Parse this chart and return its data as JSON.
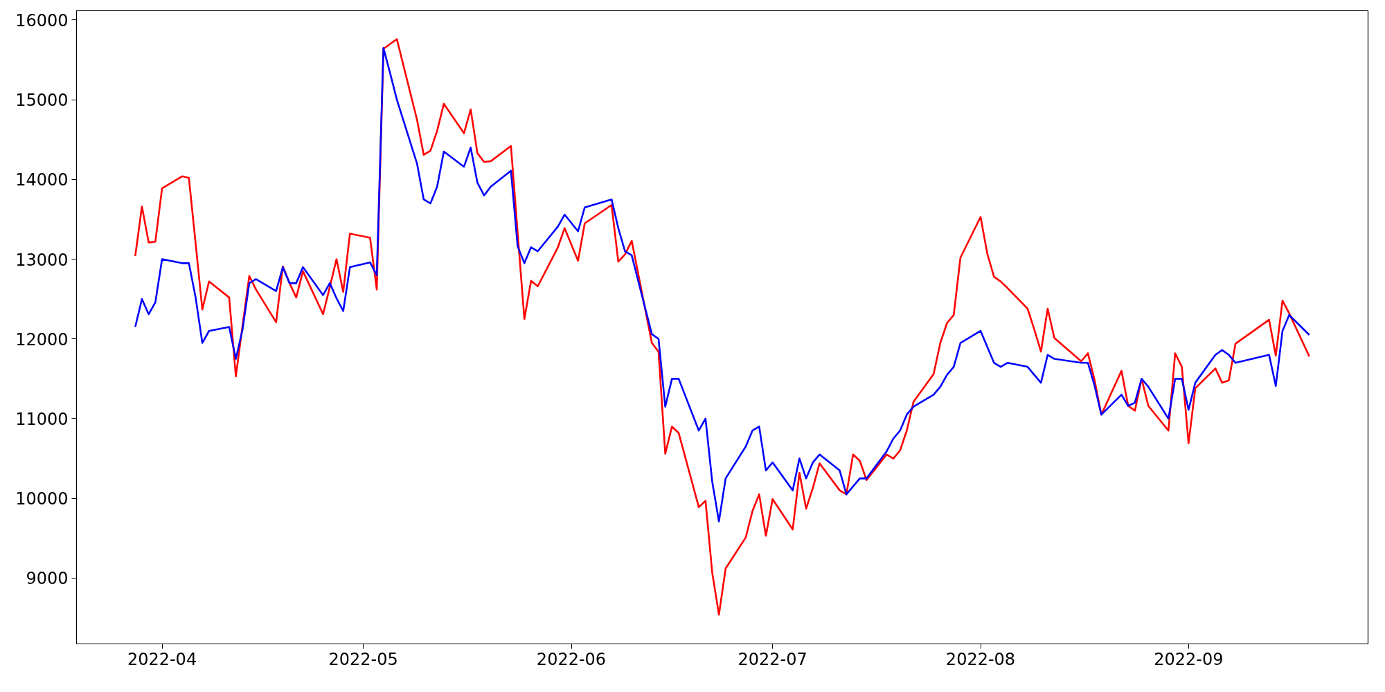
{
  "chart_data": {
    "type": "line",
    "line_style": "solid",
    "grid": false,
    "xlim": [
      "2022-03-19T06:00",
      "2022-09-27T18:00"
    ],
    "xticks": [
      "2022-04",
      "2022-05",
      "2022-06",
      "2022-07",
      "2022-08",
      "2022-09"
    ],
    "ylim": [
      8174,
      16117
    ],
    "yticks": [
      9000,
      10000,
      11000,
      12000,
      13000,
      14000,
      15000,
      16000
    ],
    "x": [
      "2022-03-28",
      "2022-03-29",
      "2022-03-30",
      "2022-03-31",
      "2022-04-01",
      "2022-04-04",
      "2022-04-05",
      "2022-04-06",
      "2022-04-07",
      "2022-04-08",
      "2022-04-11",
      "2022-04-12",
      "2022-04-13",
      "2022-04-14",
      "2022-04-15",
      "2022-04-18",
      "2022-04-19",
      "2022-04-20",
      "2022-04-21",
      "2022-04-22",
      "2022-04-25",
      "2022-04-26",
      "2022-04-27",
      "2022-04-28",
      "2022-04-29",
      "2022-05-02",
      "2022-05-03",
      "2022-05-04",
      "2022-05-05",
      "2022-05-06",
      "2022-05-09",
      "2022-05-10",
      "2022-05-11",
      "2022-05-12",
      "2022-05-13",
      "2022-05-16",
      "2022-05-17",
      "2022-05-18",
      "2022-05-19",
      "2022-05-20",
      "2022-05-23",
      "2022-05-24",
      "2022-05-25",
      "2022-05-26",
      "2022-05-27",
      "2022-05-30",
      "2022-05-31",
      "2022-06-02",
      "2022-06-03",
      "2022-06-07",
      "2022-06-08",
      "2022-06-09",
      "2022-06-10",
      "2022-06-13",
      "2022-06-14",
      "2022-06-15",
      "2022-06-16",
      "2022-06-17",
      "2022-06-20",
      "2022-06-21",
      "2022-06-22",
      "2022-06-23",
      "2022-06-24",
      "2022-06-27",
      "2022-06-28",
      "2022-06-29",
      "2022-06-30",
      "2022-07-01",
      "2022-07-04",
      "2022-07-05",
      "2022-07-06",
      "2022-07-07",
      "2022-07-08",
      "2022-07-11",
      "2022-07-12",
      "2022-07-13",
      "2022-07-14",
      "2022-07-15",
      "2022-07-18",
      "2022-07-19",
      "2022-07-20",
      "2022-07-21",
      "2022-07-22",
      "2022-07-25",
      "2022-07-26",
      "2022-07-27",
      "2022-07-28",
      "2022-07-29",
      "2022-08-01",
      "2022-08-02",
      "2022-08-03",
      "2022-08-04",
      "2022-08-05",
      "2022-08-08",
      "2022-08-09",
      "2022-08-10",
      "2022-08-11",
      "2022-08-12",
      "2022-08-16",
      "2022-08-17",
      "2022-08-18",
      "2022-08-19",
      "2022-08-22",
      "2022-08-23",
      "2022-08-24",
      "2022-08-25",
      "2022-08-26",
      "2022-08-29",
      "2022-08-30",
      "2022-08-31",
      "2022-09-01",
      "2022-09-02",
      "2022-09-05",
      "2022-09-06",
      "2022-09-07",
      "2022-09-08",
      "2022-09-13",
      "2022-09-14",
      "2022-09-15",
      "2022-09-16",
      "2022-09-19"
    ],
    "series": [
      {
        "color": "#ff0000",
        "values": [
          13040,
          13660,
          13210,
          13220,
          13890,
          14040,
          14020,
          13200,
          12370,
          12720,
          12520,
          11530,
          12170,
          12790,
          12620,
          12210,
          12910,
          12700,
          12520,
          12850,
          12310,
          12650,
          13000,
          12590,
          13320,
          13270,
          12620,
          15640,
          15700,
          15760,
          14750,
          14310,
          14360,
          14610,
          14950,
          14580,
          14880,
          14330,
          14220,
          14230,
          14420,
          13330,
          12250,
          12730,
          12660,
          13150,
          13390,
          12980,
          13450,
          13680,
          12970,
          13060,
          13230,
          11950,
          11840,
          10560,
          10900,
          10820,
          9890,
          9970,
          9070,
          8540,
          9120,
          9510,
          9840,
          10050,
          9530,
          9990,
          9610,
          10320,
          9870,
          10130,
          10440,
          10100,
          10050,
          10550,
          10470,
          10230,
          10550,
          10500,
          10600,
          10850,
          11210,
          11560,
          11950,
          12200,
          12300,
          13020,
          13530,
          13070,
          12780,
          12720,
          12640,
          12380,
          12120,
          11840,
          12380,
          12010,
          11720,
          11820,
          11480,
          11050,
          11600,
          11160,
          11100,
          11500,
          11160,
          10850,
          11820,
          11650,
          10690,
          11380,
          11630,
          11450,
          11480,
          11940,
          12240,
          11790,
          12480,
          12320,
          11780
        ]
      },
      {
        "color": "#0000ff",
        "values": [
          12150,
          12500,
          12310,
          12460,
          13000,
          12950,
          12950,
          12520,
          11950,
          12100,
          12150,
          11750,
          12120,
          12700,
          12750,
          12600,
          12900,
          12700,
          12700,
          12900,
          12550,
          12700,
          12510,
          12350,
          12900,
          12960,
          12800,
          15650,
          15330,
          15000,
          14200,
          13750,
          13700,
          13910,
          14350,
          14160,
          14400,
          13960,
          13800,
          13910,
          14110,
          13160,
          12950,
          13150,
          13100,
          13410,
          13560,
          13350,
          13650,
          13750,
          13390,
          13100,
          13050,
          12060,
          12000,
          11150,
          11500,
          11500,
          10850,
          11000,
          10210,
          9710,
          10250,
          10650,
          10850,
          10900,
          10350,
          10450,
          10100,
          10500,
          10250,
          10450,
          10550,
          10350,
          10050,
          10150,
          10250,
          10250,
          10590,
          10750,
          10850,
          11050,
          11150,
          11300,
          11400,
          11550,
          11650,
          11950,
          12100,
          11900,
          11700,
          11650,
          11700,
          11650,
          11550,
          11450,
          11800,
          11750,
          11700,
          11700,
          11410,
          11050,
          11300,
          11160,
          11200,
          11500,
          11400,
          11000,
          11500,
          11500,
          11110,
          11450,
          11800,
          11860,
          11800,
          11700,
          11800,
          11410,
          12100,
          12300,
          12050
        ]
      }
    ]
  }
}
